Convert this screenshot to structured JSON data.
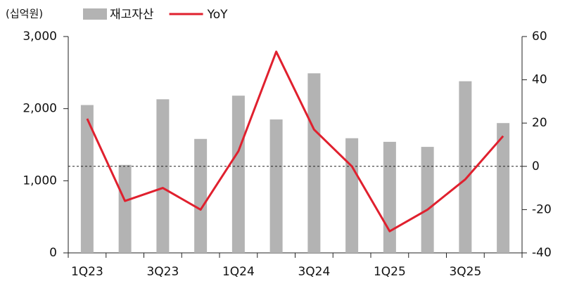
{
  "chart_data": {
    "type": "combo",
    "unit_label": "(십억원)",
    "categories": [
      "1Q23",
      null,
      "3Q23",
      null,
      "1Q24",
      null,
      "3Q24",
      null,
      "1Q25",
      null,
      "3Q25",
      null
    ],
    "series": [
      {
        "name": "재고자산",
        "type": "bar",
        "color": "#b3b3b3",
        "values": [
          2050,
          1220,
          2130,
          1580,
          2180,
          1850,
          2490,
          1590,
          1540,
          1470,
          2380,
          1800
        ]
      },
      {
        "name": "YoY",
        "type": "line",
        "axis": "y2",
        "color": "#e0202e",
        "values": [
          22,
          -16,
          -10,
          -20,
          7,
          53,
          17,
          0,
          -30,
          -20,
          -6,
          14
        ]
      }
    ],
    "ylim": [
      0,
      3000
    ],
    "yticks": [
      0,
      {
        "value": 1000,
        "label": "1,000"
      },
      {
        "value": 2000,
        "label": "2,000"
      },
      {
        "value": 3000,
        "label": "3,000"
      }
    ],
    "y2lim": [
      -40,
      60
    ],
    "y2ticks": [
      -40,
      -20,
      0,
      20,
      40,
      60
    ],
    "zero_line_y2": 0
  }
}
